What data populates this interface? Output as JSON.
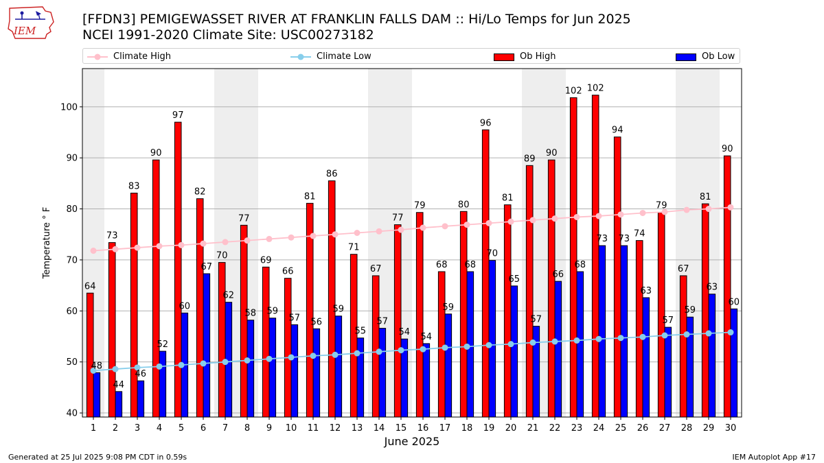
{
  "header": {
    "title_line1": "[FFDN3] PEMIGEWASSET RIVER  AT FRANKLIN FALLS DAM :: Hi/Lo Temps for Jun 2025",
    "title_line2": "NCEI 1991-2020 Climate Site: USC00273182",
    "logo_text": "IEM"
  },
  "footer": {
    "generated": "Generated at 25 Jul 2025 9:08 PM CDT in 0.59s",
    "app": "IEM Autoplot App #17"
  },
  "colors": {
    "climate_high": "#ffc0cb",
    "climate_low": "#87ceeb",
    "ob_high": "#ff0000",
    "ob_low": "#0000ff",
    "weekend_band": "#eeeeee",
    "grid": "#b0b0b0"
  },
  "chart_data": {
    "type": "bar",
    "title": "[FFDN3] PEMIGEWASSET RIVER  AT FRANKLIN FALLS DAM :: Hi/Lo Temps for Jun 2025",
    "subtitle": "NCEI 1991-2020 Climate Site: USC00273182",
    "xlabel": "June 2025",
    "ylabel": "Temperature ° F",
    "ylim": [
      39.2,
      107.5
    ],
    "yticks": [
      40,
      50,
      60,
      70,
      80,
      90,
      100
    ],
    "grid": true,
    "legend_position": "top",
    "categories": [
      "1",
      "2",
      "3",
      "4",
      "5",
      "6",
      "7",
      "8",
      "9",
      "10",
      "11",
      "12",
      "13",
      "14",
      "15",
      "16",
      "17",
      "18",
      "19",
      "20",
      "21",
      "22",
      "23",
      "24",
      "25",
      "26",
      "27",
      "28",
      "29",
      "30"
    ],
    "shaded_days": [
      1,
      7,
      8,
      14,
      15,
      21,
      22,
      28,
      29
    ],
    "series": [
      {
        "name": "Ob High",
        "kind": "bar",
        "values": [
          63.5,
          73.4,
          83.1,
          89.6,
          97.0,
          82.0,
          69.5,
          76.8,
          68.6,
          66.4,
          81.1,
          85.5,
          71.1,
          66.9,
          76.9,
          79.3,
          67.7,
          79.5,
          95.5,
          80.8,
          88.5,
          89.6,
          101.8,
          102.3,
          94.1,
          73.8,
          79.3,
          66.9,
          81.0,
          90.4
        ],
        "labels": [
          "64",
          "73",
          "83",
          "90",
          "97",
          "82",
          "70",
          "77",
          "69",
          "66",
          "81",
          "86",
          "71",
          "67",
          "77",
          "79",
          "68",
          "80",
          "96",
          "81",
          "89",
          "90",
          "102",
          "102",
          "94",
          "74",
          "79",
          "67",
          "81",
          "90"
        ]
      },
      {
        "name": "Ob Low",
        "kind": "bar",
        "values": [
          47.9,
          44.2,
          46.3,
          52.1,
          59.6,
          67.3,
          61.7,
          58.2,
          58.6,
          57.3,
          56.5,
          59.0,
          54.7,
          56.6,
          54.5,
          53.6,
          59.4,
          67.7,
          69.9,
          64.9,
          57.0,
          65.8,
          67.7,
          72.8,
          72.8,
          62.6,
          56.8,
          58.8,
          63.3,
          60.4
        ],
        "labels": [
          "48",
          "44",
          "46",
          "52",
          "60",
          "67",
          "62",
          "58",
          "59",
          "57",
          "56",
          "59",
          "55",
          "57",
          "54",
          "54",
          "59",
          "68",
          "70",
          "65",
          "57",
          "66",
          "68",
          "73",
          "73",
          "63",
          "57",
          "59",
          "63",
          "60"
        ]
      },
      {
        "name": "Climate High",
        "kind": "line",
        "values": [
          71.8,
          72.1,
          72.4,
          72.7,
          72.9,
          73.2,
          73.5,
          73.8,
          74.1,
          74.4,
          74.7,
          75.0,
          75.3,
          75.6,
          75.9,
          76.3,
          76.6,
          76.9,
          77.2,
          77.5,
          77.8,
          78.1,
          78.4,
          78.6,
          78.9,
          79.2,
          79.4,
          79.8,
          80.0,
          80.3
        ]
      },
      {
        "name": "Climate Low",
        "kind": "line",
        "values": [
          48.3,
          48.6,
          48.9,
          49.1,
          49.4,
          49.7,
          50.0,
          50.3,
          50.6,
          50.9,
          51.2,
          51.4,
          51.7,
          52.0,
          52.3,
          52.5,
          52.8,
          53.0,
          53.3,
          53.5,
          53.8,
          54.0,
          54.2,
          54.5,
          54.7,
          54.9,
          55.2,
          55.4,
          55.6,
          55.8
        ]
      }
    ]
  }
}
